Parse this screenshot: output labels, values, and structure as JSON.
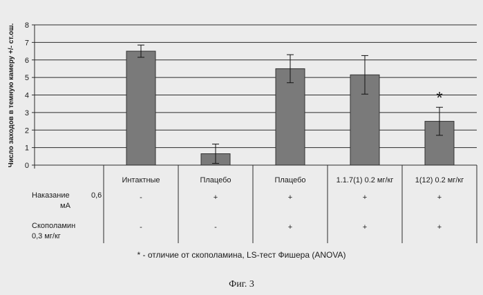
{
  "chart_data": {
    "type": "bar",
    "ylabel": "Число заходов в темную камеру +/- ст.ош.",
    "ylim": [
      0,
      8
    ],
    "yticks": [
      "0",
      "1",
      "2",
      "3",
      "4",
      "5",
      "6",
      "7",
      "8"
    ],
    "grid": true,
    "categories": [
      "Интактные",
      "Плацебо",
      "Плацебо",
      "1.1.7(1) 0.2 мг/кг",
      "1(12) 0.2 мг/кг"
    ],
    "values": [
      6.5,
      0.65,
      5.5,
      5.15,
      2.5
    ],
    "errors": [
      0.35,
      0.55,
      0.8,
      1.1,
      0.8
    ],
    "bar_color": "#7a7a7a",
    "significance_marks": [
      "",
      "",
      "",
      "",
      "*"
    ]
  },
  "table": {
    "rows": [
      {
        "label_line1": "Наказание",
        "label_value": "0,6",
        "label_line2": "мА",
        "cells": [
          "-",
          "+",
          "+",
          "+",
          "+"
        ]
      },
      {
        "label_line1": "Скополамин",
        "label_line2": "0,3 мг/кг",
        "cells": [
          "-",
          "-",
          "+",
          "+",
          "+"
        ]
      }
    ]
  },
  "footnote": "* - отличие от скополамина, LS-тест Фишера (ANOVA)",
  "figure_label": "Фиг. 3"
}
